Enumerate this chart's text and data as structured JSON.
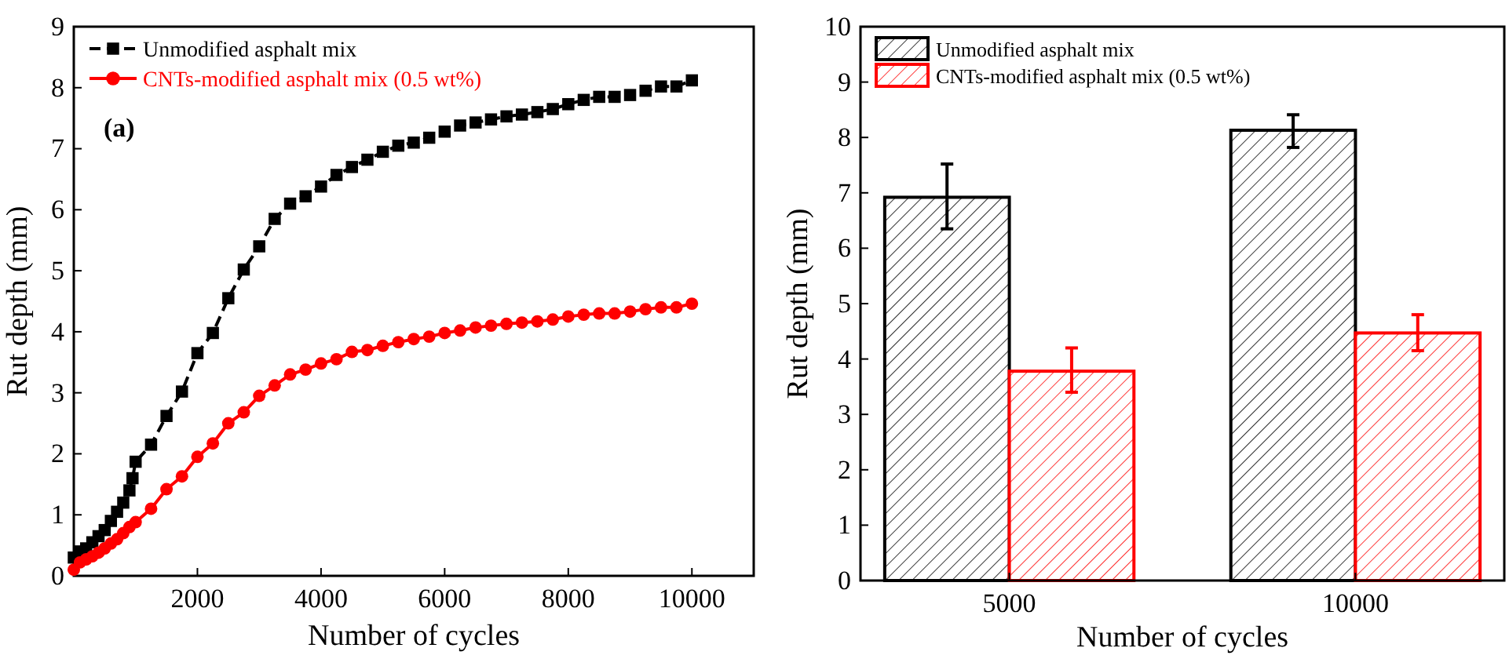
{
  "chart_data": [
    {
      "type": "line",
      "xlabel": "Number of cycles",
      "ylabel": "Rut depth (mm)",
      "annotations": [
        "(a)"
      ],
      "xlim": [
        0,
        11000
      ],
      "xticks": [
        2000,
        4000,
        6000,
        8000,
        10000
      ],
      "ylim": [
        0,
        9
      ],
      "yticks": [
        0,
        1,
        2,
        3,
        4,
        5,
        6,
        7,
        8,
        9
      ],
      "legend": "top left",
      "x": [
        0,
        100,
        200,
        300,
        400,
        500,
        600,
        700,
        800,
        900,
        950,
        1000,
        1250,
        1500,
        1750,
        2000,
        2250,
        2500,
        2750,
        3000,
        3250,
        3500,
        3750,
        4000,
        4250,
        4500,
        4750,
        5000,
        5250,
        5500,
        5750,
        6000,
        6250,
        6500,
        6750,
        7000,
        7250,
        7500,
        7750,
        8000,
        8250,
        8500,
        8750,
        9000,
        9250,
        9500,
        9750,
        10000
      ],
      "series": [
        {
          "name": "Unmodified asphalt mix",
          "color": "#000000",
          "marker": "square",
          "line_style": "dashed",
          "values": [
            0.3,
            0.4,
            0.45,
            0.55,
            0.65,
            0.75,
            0.9,
            1.05,
            1.2,
            1.4,
            1.6,
            1.87,
            2.15,
            2.62,
            3.02,
            3.65,
            3.98,
            4.55,
            5.02,
            5.4,
            5.85,
            6.1,
            6.22,
            6.38,
            6.57,
            6.7,
            6.82,
            6.95,
            7.05,
            7.1,
            7.18,
            7.28,
            7.38,
            7.43,
            7.48,
            7.53,
            7.56,
            7.6,
            7.65,
            7.73,
            7.8,
            7.85,
            7.85,
            7.88,
            7.95,
            8.02,
            8.02,
            8.12
          ]
        },
        {
          "name": "CNTs-modified asphalt mix (0.5 wt%)",
          "color": "#ff0000",
          "marker": "circle",
          "line_style": "solid",
          "x": [
            0,
            100,
            200,
            300,
            400,
            500,
            600,
            700,
            800,
            900,
            1000,
            1250,
            1500,
            1750,
            2000,
            2250,
            2500,
            2750,
            3000,
            3250,
            3500,
            3750,
            4000,
            4250,
            4500,
            4750,
            5000,
            5250,
            5500,
            5750,
            6000,
            6250,
            6500,
            6750,
            7000,
            7250,
            7500,
            7750,
            8000,
            8250,
            8500,
            8750,
            9000,
            9250,
            9500,
            9750,
            10000
          ],
          "values": [
            0.1,
            0.22,
            0.27,
            0.32,
            0.38,
            0.45,
            0.53,
            0.6,
            0.7,
            0.8,
            0.88,
            1.1,
            1.42,
            1.63,
            1.95,
            2.17,
            2.5,
            2.68,
            2.95,
            3.12,
            3.3,
            3.38,
            3.48,
            3.55,
            3.67,
            3.7,
            3.77,
            3.83,
            3.88,
            3.92,
            3.98,
            4.02,
            4.07,
            4.1,
            4.13,
            4.15,
            4.17,
            4.2,
            4.25,
            4.28,
            4.3,
            4.3,
            4.33,
            4.37,
            4.4,
            4.4,
            4.46
          ]
        }
      ]
    },
    {
      "type": "bar",
      "xlabel": "Number of cycles",
      "ylabel": "Rut depth (mm)",
      "categories": [
        "5000",
        "10000"
      ],
      "ylim": [
        0,
        10
      ],
      "yticks": [
        0,
        1,
        2,
        3,
        4,
        5,
        6,
        7,
        8,
        9,
        10
      ],
      "legend": "top left",
      "series": [
        {
          "name": "Unmodified asphalt mix",
          "color": "#000000",
          "values": [
            6.92,
            8.13
          ],
          "errors": [
            [
              6.35,
              7.52
            ],
            [
              7.82,
              8.41
            ]
          ]
        },
        {
          "name": "CNTs-modified asphalt mix (0.5 wt%)",
          "color": "#ff0000",
          "values": [
            3.78,
            4.47
          ],
          "errors": [
            [
              3.4,
              4.2
            ],
            [
              4.15,
              4.8
            ]
          ]
        }
      ]
    }
  ]
}
